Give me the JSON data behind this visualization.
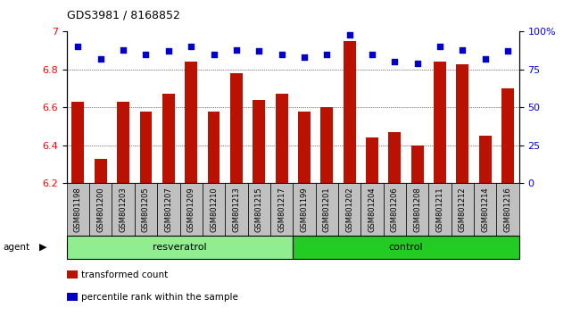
{
  "title": "GDS3981 / 8168852",
  "categories": [
    "GSM801198",
    "GSM801200",
    "GSM801203",
    "GSM801205",
    "GSM801207",
    "GSM801209",
    "GSM801210",
    "GSM801213",
    "GSM801215",
    "GSM801217",
    "GSM801199",
    "GSM801201",
    "GSM801202",
    "GSM801204",
    "GSM801206",
    "GSM801208",
    "GSM801211",
    "GSM801212",
    "GSM801214",
    "GSM801216"
  ],
  "bar_values": [
    6.63,
    6.33,
    6.63,
    6.58,
    6.67,
    6.84,
    6.58,
    6.78,
    6.64,
    6.67,
    6.58,
    6.6,
    6.95,
    6.44,
    6.47,
    6.4,
    6.84,
    6.83,
    6.45,
    6.7
  ],
  "percentile_values": [
    90,
    82,
    88,
    85,
    87,
    90,
    85,
    88,
    87,
    85,
    83,
    85,
    98,
    85,
    80,
    79,
    90,
    88,
    82,
    87
  ],
  "groups": [
    {
      "label": "resveratrol",
      "start": 0,
      "end": 10,
      "color": "#90EE90"
    },
    {
      "label": "control",
      "start": 10,
      "end": 20,
      "color": "#22CC22"
    }
  ],
  "group_row_label": "agent",
  "ylim_left": [
    6.2,
    7.0
  ],
  "ylim_right": [
    0,
    100
  ],
  "yticks_left": [
    6.2,
    6.4,
    6.6,
    6.8,
    7.0
  ],
  "ytick_labels_left": [
    "6.2",
    "6.4",
    "6.6",
    "6.8",
    "7"
  ],
  "yticks_right": [
    0,
    25,
    50,
    75,
    100
  ],
  "ytick_labels_right": [
    "0",
    "25",
    "50",
    "75",
    "100%"
  ],
  "grid_values": [
    6.4,
    6.6,
    6.8
  ],
  "bar_color": "#BB1100",
  "percentile_color": "#0000CC",
  "plot_bg_color": "#FFFFFF",
  "tick_bg_color": "#C0C0C0",
  "legend_items": [
    {
      "label": "transformed count",
      "color": "#BB1100"
    },
    {
      "label": "percentile rank within the sample",
      "color": "#0000CC"
    }
  ]
}
